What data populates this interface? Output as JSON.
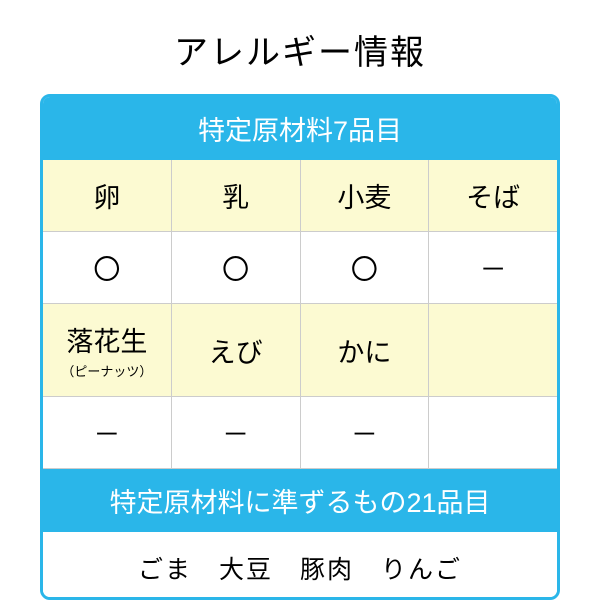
{
  "title": "アレルギー情報",
  "section1": {
    "header": "特定原材料7品目",
    "row1_labels": [
      "卵",
      "乳",
      "小麦",
      "そば"
    ],
    "row1_values": [
      "〇",
      "〇",
      "〇",
      "－"
    ],
    "row2_labels": [
      "落花生",
      "えび",
      "かに",
      ""
    ],
    "row2_sublabel": "（ピーナッツ）",
    "row2_values": [
      "－",
      "－",
      "－",
      ""
    ]
  },
  "section2": {
    "header": "特定原材料に準ずるもの21品目",
    "content": "ごま　大豆　豚肉　りんご"
  },
  "colors": {
    "border": "#2ab6e9",
    "header_bg": "#2ab6e9",
    "header_text": "#ffffff",
    "label_bg": "#fcfad2",
    "value_bg": "#ffffff",
    "grid_line": "#cccccc",
    "text": "#000000"
  }
}
